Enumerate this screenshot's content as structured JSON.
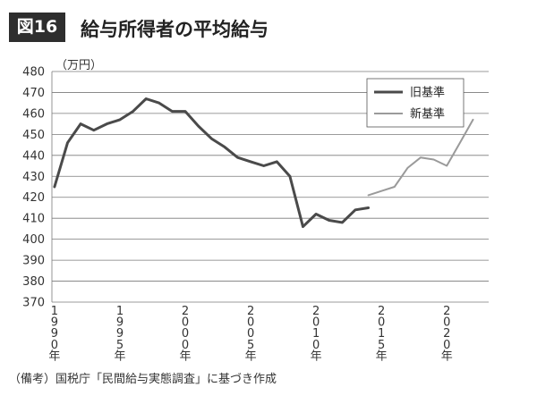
{
  "figure": {
    "badge": "図16",
    "title": "給与所得者の平均給与",
    "unit": "（万円）",
    "note": "（備考）国税庁「民間給与実態調査」に基づき作成"
  },
  "chart_data": {
    "type": "line",
    "title": "給与所得者の平均給与",
    "ylabel": "（万円）",
    "ylim": [
      370,
      480
    ],
    "yticks": [
      370,
      380,
      390,
      400,
      410,
      420,
      430,
      440,
      450,
      460,
      470,
      480
    ],
    "xlim": [
      1989.8,
      2023.2
    ],
    "xticks": [
      {
        "year": 1990,
        "label": "1990年"
      },
      {
        "year": 1995,
        "label": "1995年"
      },
      {
        "year": 2000,
        "label": "2000年"
      },
      {
        "year": 2005,
        "label": "2005年"
      },
      {
        "year": 2010,
        "label": "2010年"
      },
      {
        "year": 2015,
        "label": "2015年"
      },
      {
        "year": 2020,
        "label": "2020年"
      }
    ],
    "grid": true,
    "legend_position": "top-right",
    "series": [
      {
        "name": "旧基準",
        "color": "#4a4a4a",
        "x": [
          1990,
          1991,
          1992,
          1993,
          1994,
          1995,
          1996,
          1997,
          1998,
          1999,
          2000,
          2001,
          2002,
          2003,
          2004,
          2005,
          2006,
          2007,
          2008,
          2009,
          2010,
          2011,
          2012,
          2013,
          2014
        ],
        "values": [
          425,
          446,
          455,
          452,
          455,
          457,
          461,
          467,
          465,
          461,
          461,
          454,
          448,
          444,
          439,
          437,
          435,
          437,
          430,
          406,
          412,
          409,
          408,
          414,
          415
        ]
      },
      {
        "name": "新基準",
        "color": "#9a9a9a",
        "x": [
          2014,
          2015,
          2016,
          2017,
          2018,
          2019,
          2020,
          2021,
          2022
        ],
        "values": [
          421,
          423,
          425,
          434,
          439,
          438,
          435,
          446,
          457
        ]
      }
    ]
  }
}
